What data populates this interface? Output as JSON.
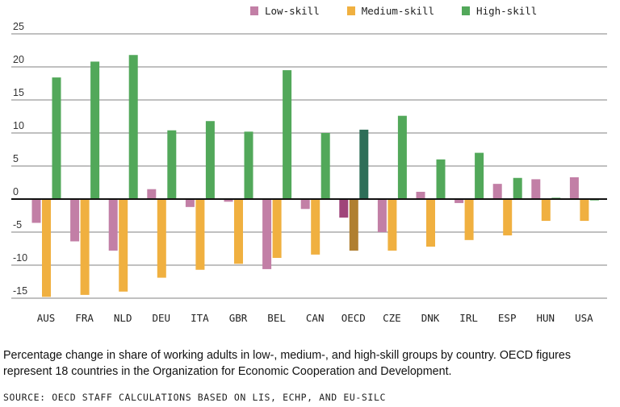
{
  "chart_data": {
    "type": "bar",
    "categories": [
      "AUS",
      "FRA",
      "NLD",
      "DEU",
      "ITA",
      "GBR",
      "BEL",
      "CAN",
      "OECD",
      "CZE",
      "DNK",
      "IRL",
      "ESP",
      "HUN",
      "USA"
    ],
    "series": [
      {
        "name": "Low-skill",
        "color": "#c27fa6",
        "highlight_color": "#a0457a",
        "values": [
          -3.6,
          -6.4,
          -7.8,
          1.5,
          -1.2,
          -0.4,
          -10.6,
          -1.5,
          -2.8,
          -5.0,
          1.1,
          -0.6,
          2.3,
          3.0,
          3.3
        ]
      },
      {
        "name": "Medium-skill",
        "color": "#f0b040",
        "highlight_color": "#b07f30",
        "values": [
          -14.8,
          -14.5,
          -14.0,
          -11.9,
          -10.7,
          -9.8,
          -8.9,
          -8.4,
          -7.8,
          -7.8,
          -7.2,
          -6.2,
          -5.5,
          -3.3,
          -3.3
        ]
      },
      {
        "name": "High-skill",
        "color": "#52a85a",
        "highlight_color": "#2e6e58",
        "values": [
          18.4,
          20.8,
          21.8,
          10.4,
          11.8,
          10.2,
          19.5,
          10.0,
          10.5,
          12.6,
          6.0,
          7.0,
          3.2,
          0.2,
          -0.2
        ]
      }
    ],
    "highlight_category": "OECD",
    "yticks": [
      "25",
      "20",
      "15",
      "10",
      "5",
      "0",
      "-5",
      "-10",
      "-15"
    ],
    "ylim": [
      -15,
      25
    ],
    "grid": true,
    "legend": "top"
  },
  "caption": "Percentage change in share of working adults in low-, medium-, and high-skill groups by country. OECD figures represent 18 countries in the Organization for Economic Cooperation and Development.",
  "source": "SOURCE: OECD STAFF CALCULATIONS BASED ON LIS, ECHP, AND EU-SILC"
}
